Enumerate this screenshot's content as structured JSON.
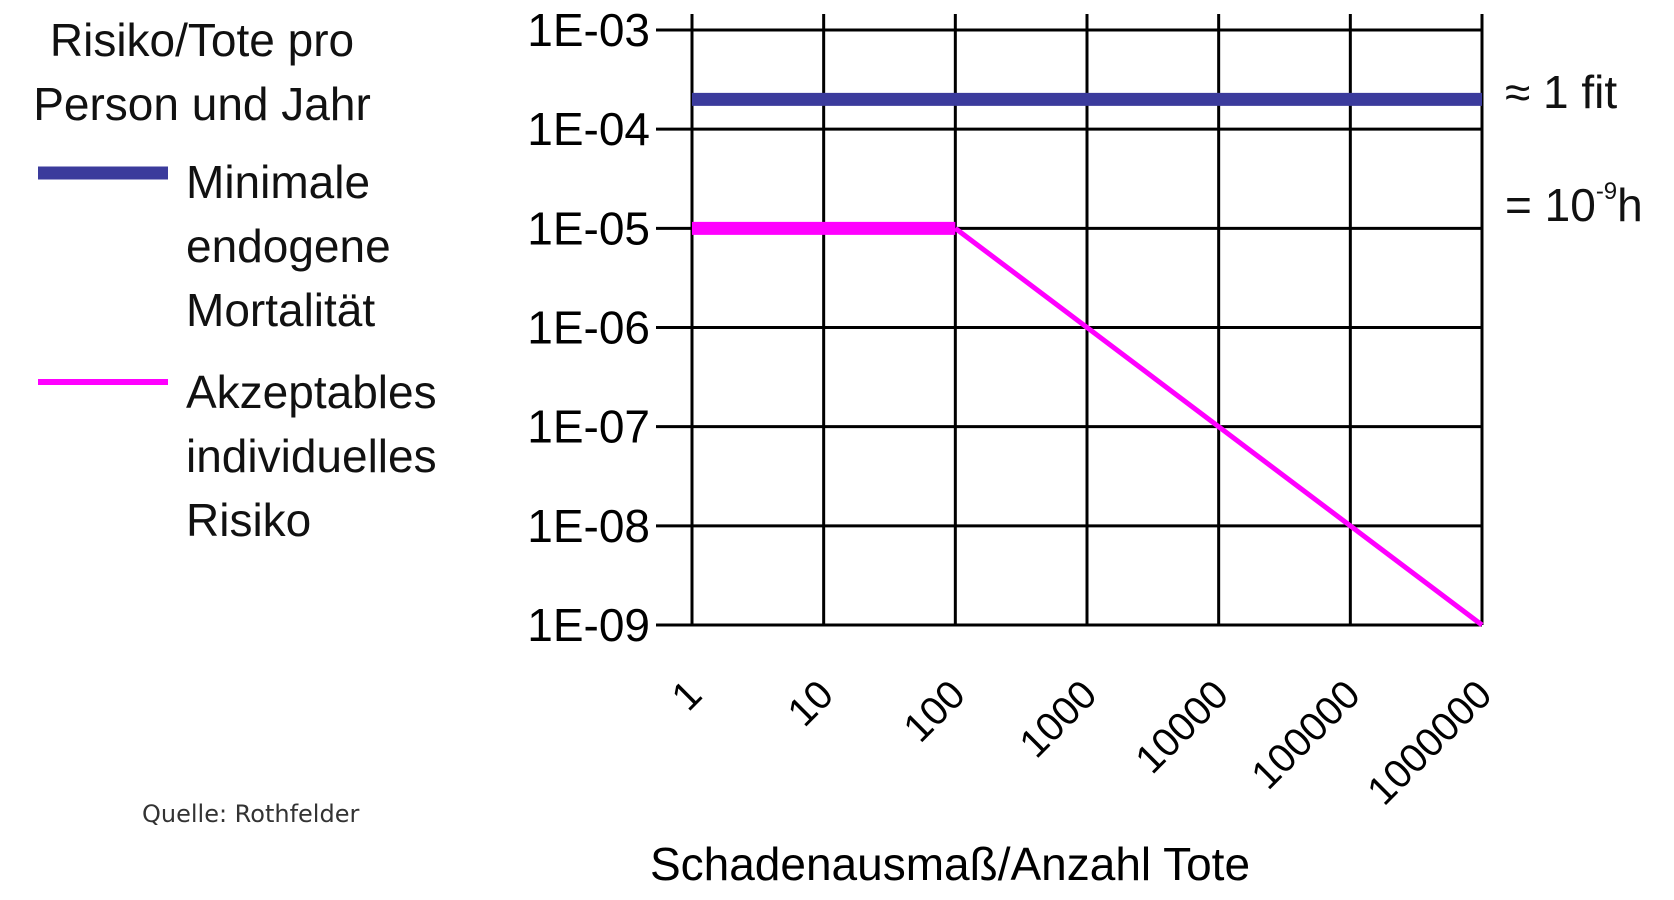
{
  "chart_data": {
    "type": "line",
    "ylabel": "Risiko/Tote pro Person und Jahr",
    "xlabel": "Schadenausmaß/Anzahl Tote",
    "x_scale": "log",
    "y_scale": "log",
    "x_ticks": [
      1,
      10,
      100,
      1000,
      10000,
      100000,
      1000000
    ],
    "x_tick_labels": [
      "1",
      "10",
      "100",
      "1000",
      "10000",
      "100000",
      "1000000"
    ],
    "y_ticks": [
      0.001,
      0.0001,
      1e-05,
      1e-06,
      1e-07,
      1e-08,
      1e-09
    ],
    "y_tick_labels": [
      "1E-03",
      "1E-04",
      "1E-05",
      "1E-06",
      "1E-07",
      "1E-08",
      "1E-09"
    ],
    "xlim": [
      1,
      1000000
    ],
    "ylim": [
      1e-09,
      0.001
    ],
    "grid": true,
    "legend_placement": "left",
    "series": [
      {
        "name": "Minimale endogene Mortalität",
        "color": "#3b3b9c",
        "x": [
          1,
          1000000
        ],
        "y": [
          0.0002,
          0.0002
        ]
      },
      {
        "name": "Akzeptables individuelles Risiko",
        "color": "#ff00ff",
        "x": [
          1,
          100,
          1000000
        ],
        "y": [
          1e-05,
          1e-05,
          1e-09
        ]
      }
    ],
    "annotations": [
      {
        "id": "fit",
        "text": "≈ 1 fit"
      },
      {
        "id": "hours",
        "text_prefix": "= 10",
        "superscript": "-9",
        "text_suffix": "h"
      }
    ],
    "source": "Quelle: Rothfelder"
  }
}
